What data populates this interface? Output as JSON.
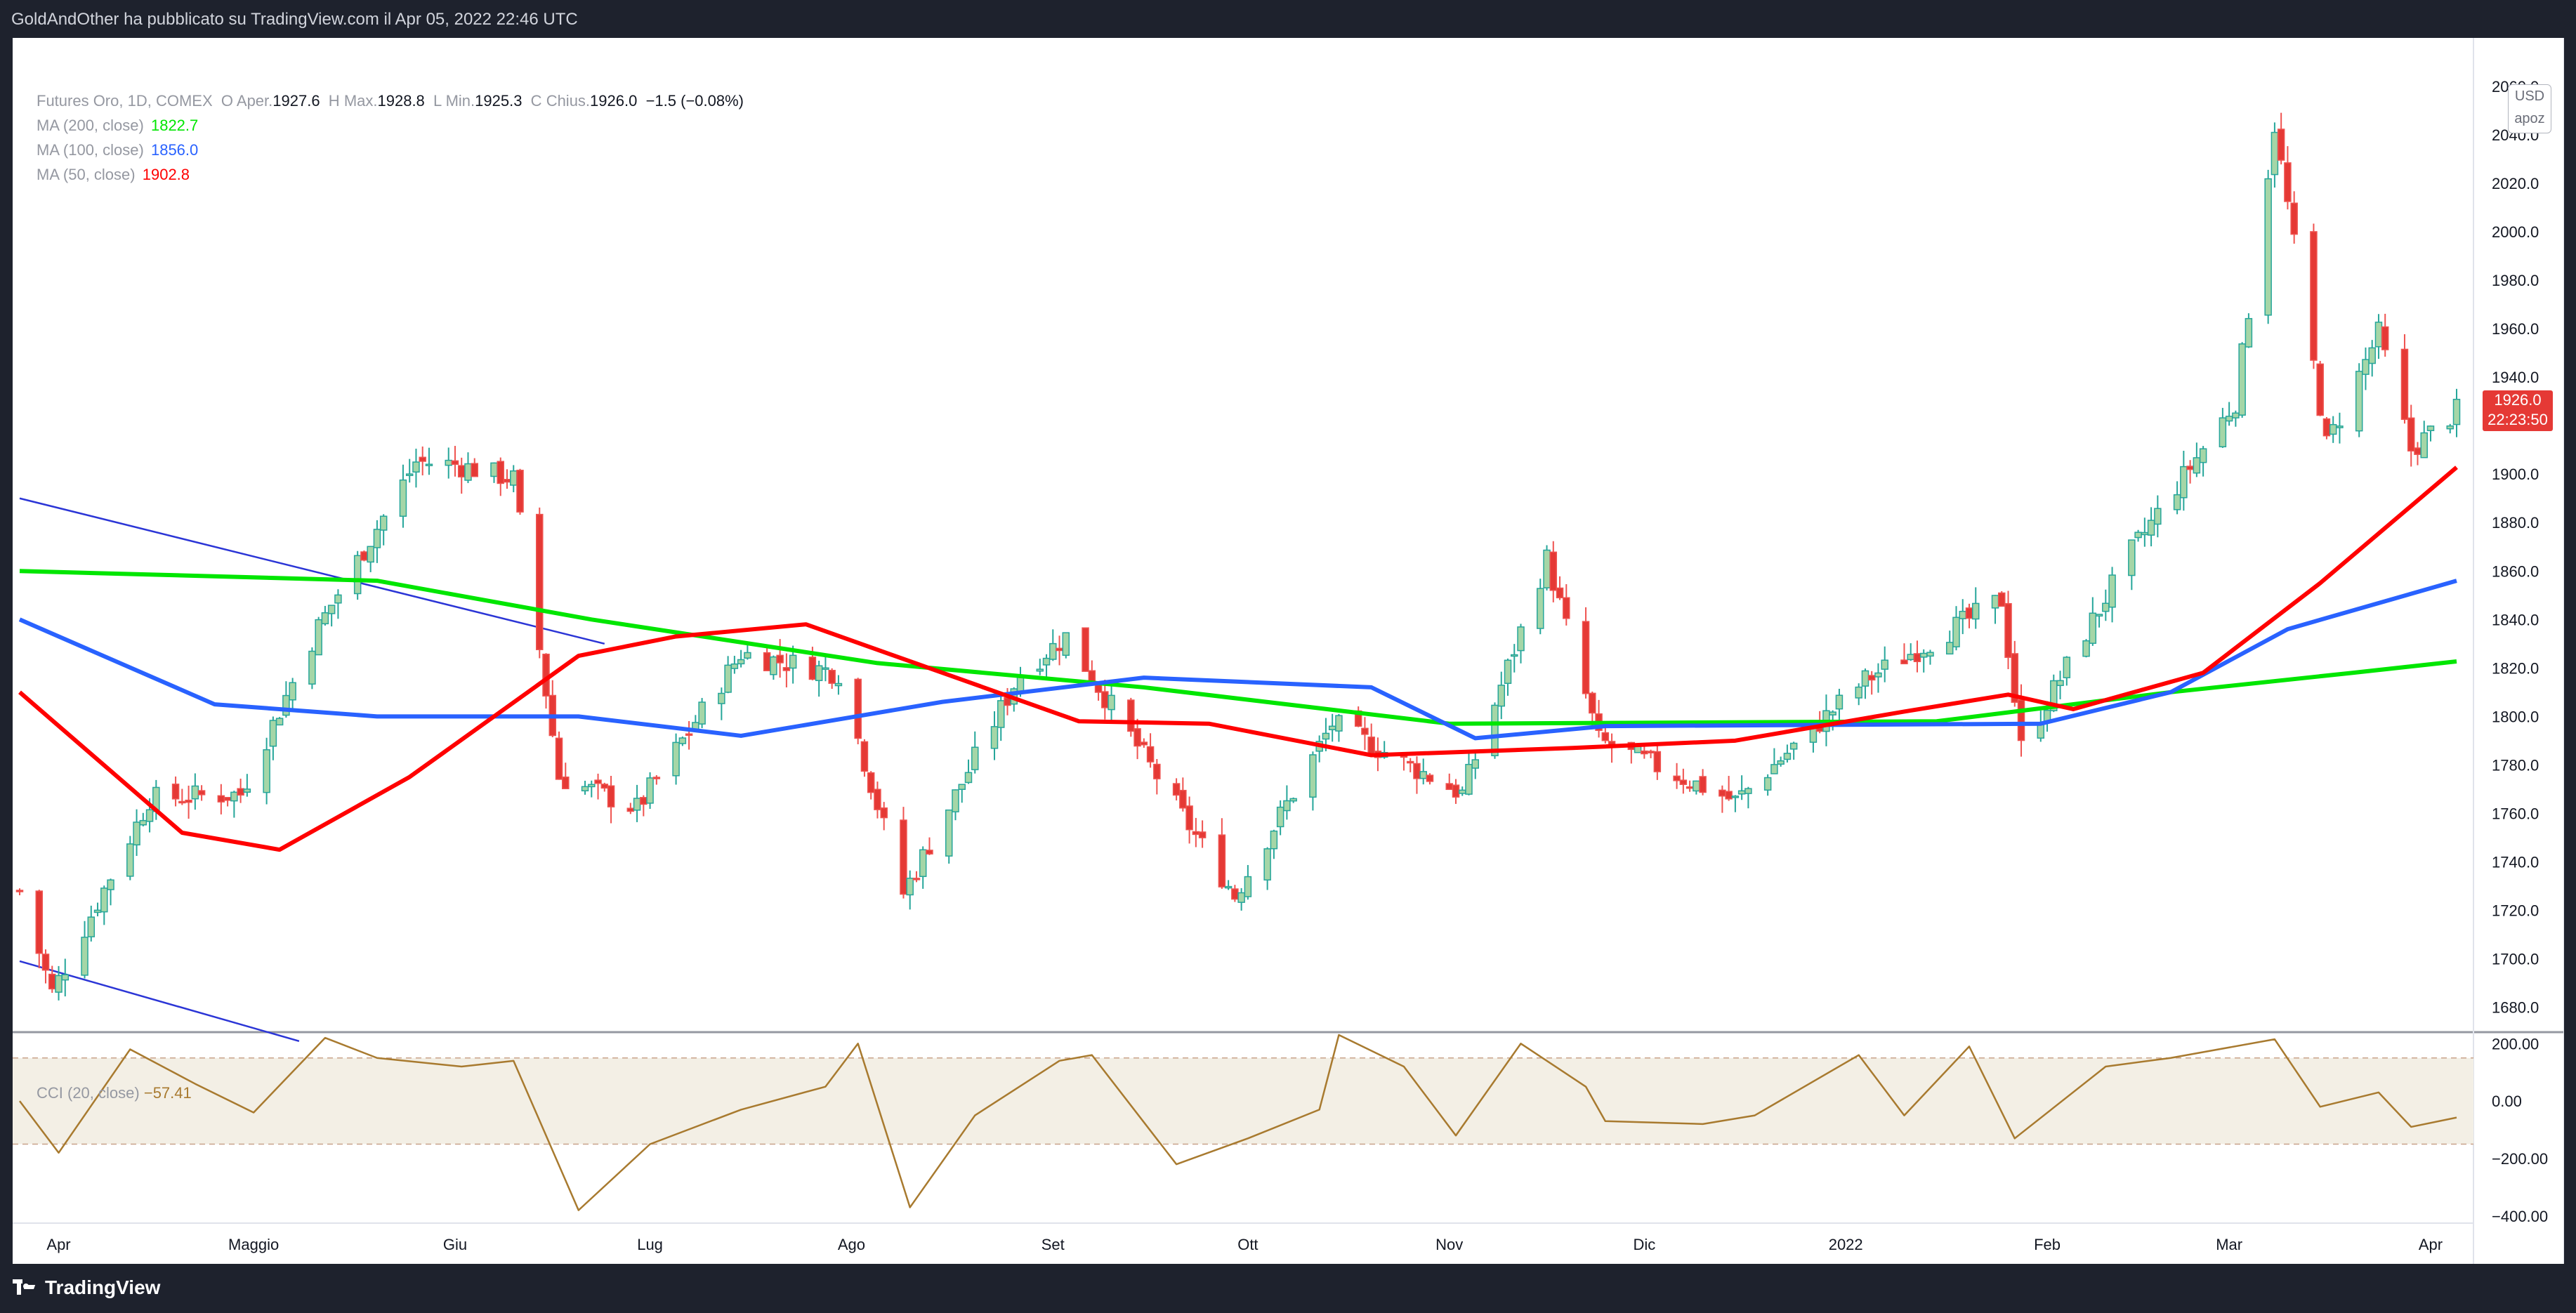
{
  "header": {
    "attribution": "GoldAndOther ha pubblicato su TradingView.com il Apr 05, 2022 22:46 UTC"
  },
  "legend": {
    "symbol": "Futures Oro, 1D, COMEX",
    "o_label": "O",
    "o_key": "Aper.",
    "open": "1927.6",
    "h_label": "H",
    "h_key": "Max.",
    "high": "1928.8",
    "l_label": "L",
    "l_key": "Min.",
    "low": "1925.3",
    "c_label": "C",
    "c_key": "Chius.",
    "close": "1926.0",
    "change": "−1.5 (−0.08%)",
    "ma200_label": "MA (200, close)",
    "ma200_value": "1822.7",
    "ma200_color": "#00e600",
    "ma100_label": "MA (100, close)",
    "ma100_value": "1856.0",
    "ma100_color": "#2962ff",
    "ma50_label": "MA (50, close)",
    "ma50_value": "1902.8",
    "ma50_color": "#ff0000"
  },
  "cci": {
    "label": "CCI (20, close)",
    "value": "−57.41",
    "color": "#a87a2f",
    "ticks": [
      "200.00",
      "0.00",
      "−200.00",
      "−400.00"
    ]
  },
  "price_scale": {
    "currency": "USD",
    "mode": "apoz",
    "last_price": "1926.0",
    "countdown": "22:23:50",
    "ticks": [
      "2060.0",
      "2040.0",
      "2020.0",
      "2000.0",
      "1980.0",
      "1960.0",
      "1940.0",
      "1900.0",
      "1880.0",
      "1860.0",
      "1840.0",
      "1820.0",
      "1800.0",
      "1780.0",
      "1760.0",
      "1740.0",
      "1720.0",
      "1700.0",
      "1680.0"
    ]
  },
  "time_axis": {
    "labels": [
      "Apr",
      "Maggio",
      "Giu",
      "Lug",
      "Ago",
      "Set",
      "Ott",
      "Nov",
      "Dic",
      "2022",
      "Feb",
      "Mar",
      "Apr"
    ]
  },
  "footer": {
    "brand": "TradingView"
  },
  "colors": {
    "up": "#26a69a",
    "up_fill": "#a5d6a7",
    "down": "#ef5350",
    "down_fill": "#e53935"
  },
  "chart_data": [
    {
      "type": "candlestick",
      "title": "Futures Oro, 1D, COMEX",
      "ylim": [
        1670,
        2080
      ],
      "x_range": [
        "2021-03-26",
        "2022-04-05"
      ],
      "x_ticks": [
        "Apr",
        "Maggio",
        "Giu",
        "Lug",
        "Ago",
        "Set",
        "Ott",
        "Nov",
        "Dic",
        "2022",
        "Feb",
        "Mar",
        "Apr"
      ],
      "anchors": [
        {
          "date": "2021-03-26",
          "close": 1728
        },
        {
          "date": "2021-03-31",
          "close": 1686
        },
        {
          "date": "2021-04-15",
          "close": 1766
        },
        {
          "date": "2021-04-29",
          "close": 1768
        },
        {
          "date": "2021-05-11",
          "close": 1837
        },
        {
          "date": "2021-05-26",
          "close": 1905
        },
        {
          "date": "2021-06-01",
          "close": 1904
        },
        {
          "date": "2021-06-10",
          "close": 1898
        },
        {
          "date": "2021-06-17",
          "close": 1775
        },
        {
          "date": "2021-06-29",
          "close": 1762
        },
        {
          "date": "2021-07-15",
          "close": 1826
        },
        {
          "date": "2021-07-30",
          "close": 1818
        },
        {
          "date": "2021-08-09",
          "close": 1727
        },
        {
          "date": "2021-08-27",
          "close": 1818
        },
        {
          "date": "2021-09-03",
          "close": 1833
        },
        {
          "date": "2021-09-29",
          "close": 1726
        },
        {
          "date": "2021-10-14",
          "close": 1797
        },
        {
          "date": "2021-11-03",
          "close": 1768
        },
        {
          "date": "2021-11-16",
          "close": 1865
        },
        {
          "date": "2021-11-24",
          "close": 1790
        },
        {
          "date": "2021-12-15",
          "close": 1765
        },
        {
          "date": "2022-01-04",
          "close": 1815
        },
        {
          "date": "2022-01-25",
          "close": 1848
        },
        {
          "date": "2022-01-28",
          "close": 1787
        },
        {
          "date": "2022-02-14",
          "close": 1868
        },
        {
          "date": "2022-03-02",
          "close": 1930
        },
        {
          "date": "2022-03-08",
          "close": 2044
        },
        {
          "date": "2022-03-16",
          "close": 1912
        },
        {
          "date": "2022-03-24",
          "close": 1958
        },
        {
          "date": "2022-03-29",
          "close": 1910
        },
        {
          "date": "2022-04-05",
          "close": 1926
        }
      ],
      "moving_averages": [
        {
          "name": "MA (200, close)",
          "color": "#00e600",
          "points": [
            {
              "date": "2021-03-26",
              "value": 1860
            },
            {
              "date": "2021-05-20",
              "value": 1856
            },
            {
              "date": "2021-06-22",
              "value": 1840
            },
            {
              "date": "2021-08-05",
              "value": 1822
            },
            {
              "date": "2021-09-15",
              "value": 1812
            },
            {
              "date": "2021-11-01",
              "value": 1797
            },
            {
              "date": "2022-01-15",
              "value": 1798
            },
            {
              "date": "2022-02-20",
              "value": 1810
            },
            {
              "date": "2022-03-20",
              "value": 1818
            },
            {
              "date": "2022-04-05",
              "value": 1822.7
            }
          ]
        },
        {
          "name": "MA (100, close)",
          "color": "#2962ff",
          "points": [
            {
              "date": "2021-03-26",
              "value": 1840
            },
            {
              "date": "2021-04-25",
              "value": 1805
            },
            {
              "date": "2021-05-20",
              "value": 1800
            },
            {
              "date": "2021-06-20",
              "value": 1800
            },
            {
              "date": "2021-07-15",
              "value": 1792
            },
            {
              "date": "2021-08-15",
              "value": 1806
            },
            {
              "date": "2021-09-15",
              "value": 1816
            },
            {
              "date": "2021-10-20",
              "value": 1812
            },
            {
              "date": "2021-11-05",
              "value": 1791
            },
            {
              "date": "2021-11-25",
              "value": 1796
            },
            {
              "date": "2022-01-31",
              "value": 1797
            },
            {
              "date": "2022-02-20",
              "value": 1810
            },
            {
              "date": "2022-03-10",
              "value": 1836
            },
            {
              "date": "2022-04-05",
              "value": 1856
            }
          ]
        },
        {
          "name": "MA (50, close)",
          "color": "#ff0000",
          "points": [
            {
              "date": "2021-03-26",
              "value": 1810
            },
            {
              "date": "2021-04-20",
              "value": 1752
            },
            {
              "date": "2021-05-05",
              "value": 1745
            },
            {
              "date": "2021-05-25",
              "value": 1775
            },
            {
              "date": "2021-06-20",
              "value": 1825
            },
            {
              "date": "2021-07-05",
              "value": 1833
            },
            {
              "date": "2021-07-25",
              "value": 1838
            },
            {
              "date": "2021-08-15",
              "value": 1818
            },
            {
              "date": "2021-09-05",
              "value": 1798
            },
            {
              "date": "2021-09-25",
              "value": 1797
            },
            {
              "date": "2021-10-20",
              "value": 1784
            },
            {
              "date": "2021-11-20",
              "value": 1787
            },
            {
              "date": "2021-12-15",
              "value": 1790
            },
            {
              "date": "2022-01-10",
              "value": 1802
            },
            {
              "date": "2022-01-26",
              "value": 1809
            },
            {
              "date": "2022-02-05",
              "value": 1803
            },
            {
              "date": "2022-02-25",
              "value": 1818
            },
            {
              "date": "2022-03-15",
              "value": 1855
            },
            {
              "date": "2022-04-05",
              "value": 1902.8
            }
          ]
        }
      ],
      "trendlines": [
        {
          "from": {
            "date": "2021-03-26",
            "value": 1890
          },
          "to": {
            "date": "2021-06-24",
            "value": 1830
          }
        },
        {
          "from": {
            "date": "2021-03-26",
            "value": 1699
          },
          "to": {
            "date": "2021-05-08",
            "value": 1666
          }
        }
      ]
    },
    {
      "type": "line",
      "title": "CCI (20, close)",
      "ylim": [
        -420,
        230
      ],
      "band": [
        -150,
        150
      ],
      "points": [
        {
          "date": "2021-03-26",
          "value": 0
        },
        {
          "date": "2021-04-01",
          "value": -180
        },
        {
          "date": "2021-04-12",
          "value": 180
        },
        {
          "date": "2021-04-22",
          "value": 60
        },
        {
          "date": "2021-05-01",
          "value": -40
        },
        {
          "date": "2021-05-12",
          "value": 220
        },
        {
          "date": "2021-05-20",
          "value": 150
        },
        {
          "date": "2021-06-02",
          "value": 120
        },
        {
          "date": "2021-06-10",
          "value": 140
        },
        {
          "date": "2021-06-20",
          "value": -380
        },
        {
          "date": "2021-07-01",
          "value": -150
        },
        {
          "date": "2021-07-15",
          "value": -30
        },
        {
          "date": "2021-07-28",
          "value": 50
        },
        {
          "date": "2021-08-02",
          "value": 200
        },
        {
          "date": "2021-08-10",
          "value": -370
        },
        {
          "date": "2021-08-20",
          "value": -50
        },
        {
          "date": "2021-09-02",
          "value": 140
        },
        {
          "date": "2021-09-07",
          "value": 160
        },
        {
          "date": "2021-09-20",
          "value": -220
        },
        {
          "date": "2021-10-01",
          "value": -130
        },
        {
          "date": "2021-10-12",
          "value": -30
        },
        {
          "date": "2021-10-15",
          "value": 230
        },
        {
          "date": "2021-10-25",
          "value": 120
        },
        {
          "date": "2021-11-02",
          "value": -120
        },
        {
          "date": "2021-11-12",
          "value": 200
        },
        {
          "date": "2021-11-22",
          "value": 50
        },
        {
          "date": "2021-11-25",
          "value": -70
        },
        {
          "date": "2021-12-10",
          "value": -80
        },
        {
          "date": "2021-12-18",
          "value": -50
        },
        {
          "date": "2022-01-03",
          "value": 160
        },
        {
          "date": "2022-01-10",
          "value": -50
        },
        {
          "date": "2022-01-20",
          "value": 190
        },
        {
          "date": "2022-01-27",
          "value": -130
        },
        {
          "date": "2022-02-10",
          "value": 120
        },
        {
          "date": "2022-02-20",
          "value": 150
        },
        {
          "date": "2022-03-08",
          "value": 215
        },
        {
          "date": "2022-03-15",
          "value": -20
        },
        {
          "date": "2022-03-24",
          "value": 30
        },
        {
          "date": "2022-03-29",
          "value": -90
        },
        {
          "date": "2022-04-05",
          "value": -57.41
        }
      ]
    }
  ]
}
